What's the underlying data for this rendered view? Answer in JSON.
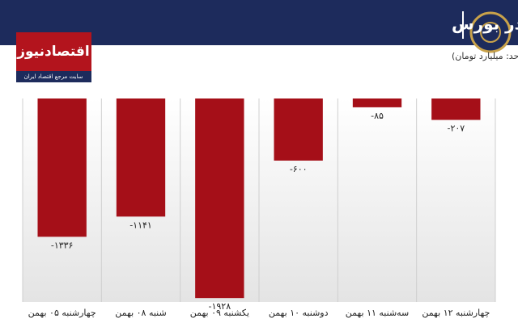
{
  "chart_data": {
    "type": "bar",
    "title": "روند ورود و خروج پول حقیقی در بورس",
    "subtitle": "(واحد: میلیارد تومان)",
    "brand": "اقتصادنیوز",
    "brand_tagline": "سایت مرجع اقتصاد ایران",
    "direction": "rtl",
    "categories": [
      "چهارشنبه ۱۲ بهمن",
      "سه‌شنبه ۱۱ بهمن",
      "دوشنبه ۱۰ بهمن",
      "یکشنبه ۰۹ بهمن",
      "شنبه ۰۸ بهمن",
      "چهارشنبه ۰۵ بهمن"
    ],
    "values": [
      -207,
      -85,
      -600,
      -1928,
      -1141,
      -1336
    ],
    "value_labels": [
      "-۲۰۷",
      "-۸۵",
      "-۶۰۰",
      "-۱۹۲۸",
      "-۱۱۴۱",
      "-۱۳۳۶"
    ],
    "color": "#a50f18",
    "ylim": [
      -1950,
      0
    ]
  }
}
